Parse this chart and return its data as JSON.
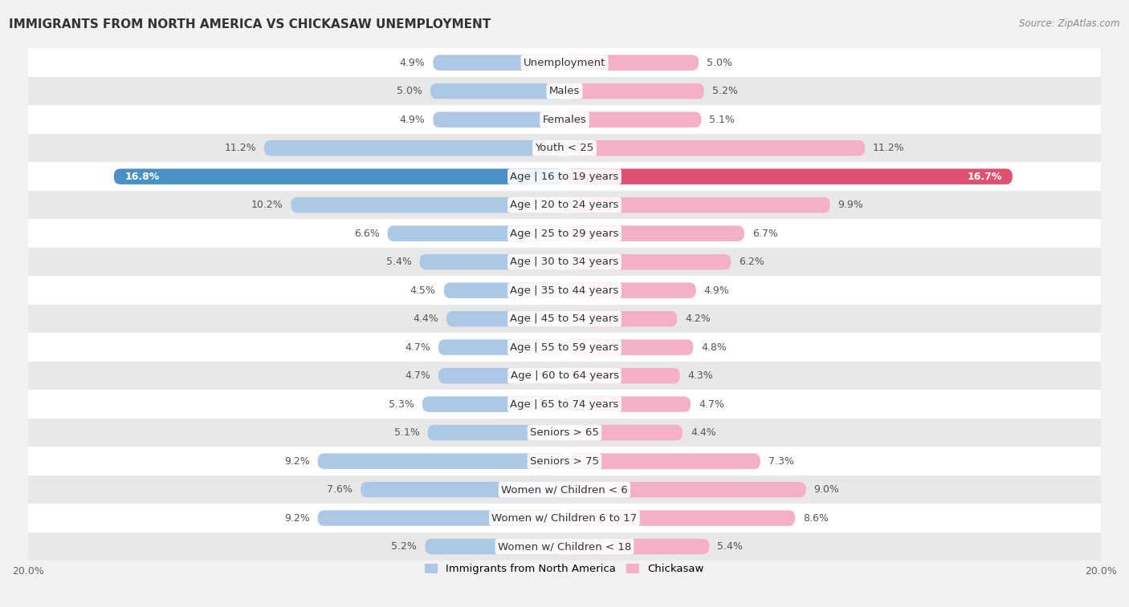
{
  "title": "IMMIGRANTS FROM NORTH AMERICA VS CHICKASAW UNEMPLOYMENT",
  "source": "Source: ZipAtlas.com",
  "categories": [
    "Unemployment",
    "Males",
    "Females",
    "Youth < 25",
    "Age | 16 to 19 years",
    "Age | 20 to 24 years",
    "Age | 25 to 29 years",
    "Age | 30 to 34 years",
    "Age | 35 to 44 years",
    "Age | 45 to 54 years",
    "Age | 55 to 59 years",
    "Age | 60 to 64 years",
    "Age | 65 to 74 years",
    "Seniors > 65",
    "Seniors > 75",
    "Women w/ Children < 6",
    "Women w/ Children 6 to 17",
    "Women w/ Children < 18"
  ],
  "left_values": [
    4.9,
    5.0,
    4.9,
    11.2,
    16.8,
    10.2,
    6.6,
    5.4,
    4.5,
    4.4,
    4.7,
    4.7,
    5.3,
    5.1,
    9.2,
    7.6,
    9.2,
    5.2
  ],
  "right_values": [
    5.0,
    5.2,
    5.1,
    11.2,
    16.7,
    9.9,
    6.7,
    6.2,
    4.9,
    4.2,
    4.8,
    4.3,
    4.7,
    4.4,
    7.3,
    9.0,
    8.6,
    5.4
  ],
  "left_color": "#adc8e6",
  "right_color": "#f4b0c4",
  "highlight_left_color": "#4a90c4",
  "highlight_right_color": "#e05070",
  "highlight_row": 4,
  "axis_max": 20.0,
  "bg_color": "#f2f2f2",
  "bar_bg_white": "#ffffff",
  "bar_bg_gray": "#e8e8e8",
  "label_fontsize": 9.5,
  "title_fontsize": 11,
  "value_fontsize": 9,
  "legend_left": "Immigrants from North America",
  "legend_right": "Chickasaw"
}
